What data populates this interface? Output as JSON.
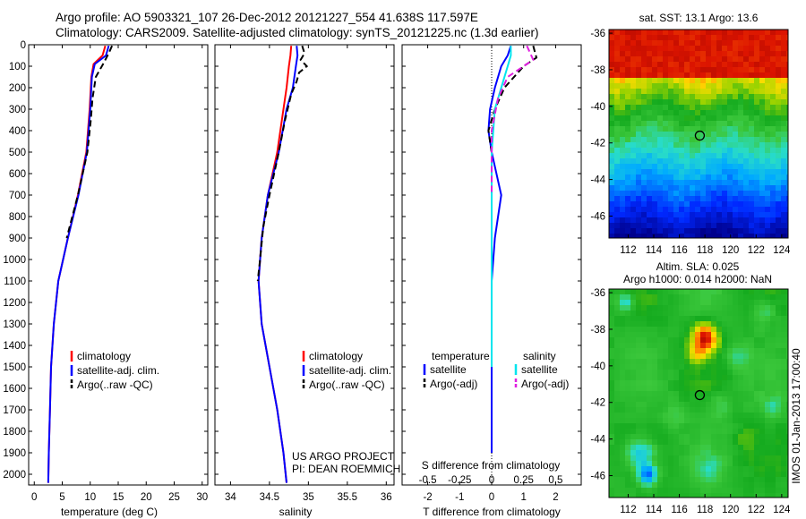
{
  "header": {
    "line1": "Argo profile: AO 5903321_107 26-Dec-2012 20121227_554 41.638S 117.597E",
    "line2": "Climatology: CARS2009. Satellite-adjusted climatology: synTS_20121225.nc (1.3d earlier)"
  },
  "credit": "US ARGO PROJECT\nPI: DEAN ROEMMICH",
  "timestamp": "IMOS 01-Jan-2013 17:00:40",
  "colors": {
    "climatology": "#ff0000",
    "satellite": "#0000ff",
    "argo": "#000000",
    "sal_satellite": "#00e5ee",
    "sal_argo": "#e020e0"
  },
  "chart_data": [
    {
      "type": "line",
      "xlabel": "temperature (deg C)",
      "ylabel": "",
      "xlim": [
        -1,
        31
      ],
      "ylim": [
        2050,
        0
      ],
      "xticks": [
        "0",
        "5",
        "10",
        "15",
        "20",
        "25",
        "30"
      ],
      "yticks": [
        "0",
        "100",
        "200",
        "300",
        "400",
        "500",
        "600",
        "700",
        "800",
        "900",
        "1000",
        "1100",
        "1200",
        "1300",
        "1400",
        "1500",
        "1600",
        "1700",
        "1800",
        "1900",
        "2000"
      ],
      "legend": [
        "climatology",
        "satellite-adj. clim.",
        "Argo(..raw -QC)"
      ],
      "series": [
        {
          "name": "climatology",
          "style": "solid",
          "color": "#ff0000",
          "x": [
            12.7,
            12.2,
            10.6,
            10.2,
            9.9,
            9.3,
            7.8,
            6.0,
            4.3,
            3.5,
            3.0,
            2.8,
            2.6,
            2.5
          ],
          "y": [
            5,
            50,
            90,
            150,
            300,
            500,
            700,
            900,
            1100,
            1300,
            1500,
            1700,
            1900,
            2040
          ]
        },
        {
          "name": "satellite-adj. clim.",
          "style": "solid",
          "color": "#0000ff",
          "x": [
            13.3,
            12.8,
            10.8,
            10.3,
            10.0,
            9.4,
            7.9,
            6.0,
            4.3,
            3.5,
            3.0,
            2.8,
            2.6,
            2.5
          ],
          "y": [
            5,
            50,
            90,
            150,
            300,
            500,
            700,
            900,
            1100,
            1300,
            1500,
            1700,
            1900,
            2040
          ]
        },
        {
          "name": "Argo(..raw -QC)",
          "style": "dashed",
          "color": "#000000",
          "x": [
            13.9,
            13.3,
            12.3,
            11.0,
            10.4,
            10.1,
            9.5,
            7.8,
            5.8
          ],
          "y": [
            5,
            40,
            90,
            150,
            250,
            350,
            500,
            700,
            900
          ]
        }
      ]
    },
    {
      "type": "line",
      "xlabel": "salinity",
      "xlim": [
        33.8,
        36.1
      ],
      "ylim": [
        2050,
        0
      ],
      "xticks": [
        "34",
        "34.5",
        "35",
        "35.5",
        "36"
      ],
      "legend": [
        "climatology",
        "satellite-adj. clim.",
        "Argo(..raw -QC)"
      ],
      "series": [
        {
          "name": "climatology",
          "style": "solid",
          "color": "#ff0000",
          "x": [
            34.78,
            34.77,
            34.75,
            34.72,
            34.68,
            34.6,
            34.48,
            34.4,
            34.36,
            34.4,
            34.5,
            34.6,
            34.68,
            34.72
          ],
          "y": [
            5,
            50,
            100,
            200,
            300,
            500,
            700,
            900,
            1100,
            1300,
            1500,
            1700,
            1900,
            2040
          ]
        },
        {
          "name": "satellite-adj. clim.",
          "style": "solid",
          "color": "#0000ff",
          "x": [
            34.85,
            34.86,
            34.84,
            34.8,
            34.72,
            34.62,
            34.48,
            34.4,
            34.36,
            34.4,
            34.5,
            34.6,
            34.68,
            34.72
          ],
          "y": [
            5,
            50,
            100,
            200,
            300,
            500,
            700,
            900,
            1100,
            1300,
            1500,
            1700,
            1900,
            2040
          ]
        },
        {
          "name": "Argo(..raw -QC)",
          "style": "dashed",
          "color": "#000000",
          "x": [
            34.92,
            34.95,
            34.9,
            34.98,
            34.88,
            34.85,
            34.78,
            34.7,
            34.62,
            34.5,
            34.42,
            34.38,
            34.35
          ],
          "y": [
            5,
            40,
            70,
            100,
            130,
            170,
            230,
            350,
            500,
            700,
            850,
            1000,
            1100
          ]
        }
      ]
    },
    {
      "type": "line",
      "xlabel": "T difference from climatology",
      "x2label": "S difference from climatology",
      "xlim": [
        -2.8,
        2.8
      ],
      "ylim": [
        2050,
        0
      ],
      "xticks": [
        "-2",
        "-1",
        "0",
        "1",
        "2"
      ],
      "x2ticks": [
        "-0.5",
        "-0.25",
        "0",
        "0.25",
        "0.5"
      ],
      "legend": [
        "temperature",
        "satellite",
        "Argo(-adj)",
        "salinity",
        "satellite",
        "Argo(-adj)"
      ],
      "series": [
        {
          "name": "satellite",
          "style": "solid",
          "color": "#0000ff",
          "x": [
            0.6,
            0.5,
            0.3,
            0.1,
            -0.05,
            -0.1,
            0.0,
            0.3,
            0.1,
            0.0,
            0.0,
            0.0
          ],
          "y": [
            5,
            50,
            100,
            200,
            300,
            400,
            500,
            700,
            900,
            1100,
            1500,
            1900
          ]
        },
        {
          "name": "Argo(-adj)",
          "style": "dashed",
          "color": "#000000",
          "x": [
            1.3,
            1.4,
            1.0,
            0.4,
            0.1,
            -0.1,
            0.0,
            0.0,
            0.0,
            0.0
          ],
          "y": [
            5,
            60,
            100,
            200,
            300,
            400,
            500,
            700,
            900,
            1100
          ]
        },
        {
          "name": "satellite",
          "style": "solid",
          "color": "#00e5ee",
          "x": [
            0.6,
            0.6,
            0.5,
            0.3,
            0.1,
            0.0,
            0.0,
            0.0,
            0.0
          ],
          "y": [
            5,
            50,
            100,
            200,
            300,
            500,
            700,
            1100,
            1500
          ]
        },
        {
          "name": "Argo(-adj)",
          "style": "dashed",
          "color": "#e020e0",
          "x": [
            1.1,
            1.3,
            1.0,
            0.5,
            0.2,
            0.0,
            0.0
          ],
          "y": [
            5,
            70,
            100,
            150,
            250,
            400,
            700
          ]
        }
      ]
    },
    {
      "type": "heatmap",
      "title": "sat. SST: 13.1 Argo: 13.6",
      "xlim": [
        110.5,
        124.5
      ],
      "ylim": [
        -47.2,
        -35.8
      ],
      "xticks": [
        "112",
        "114",
        "116",
        "118",
        "120",
        "122",
        "124"
      ],
      "yticks": [
        "-36",
        "-38",
        "-40",
        "-42",
        "-44",
        "-46"
      ],
      "marker": {
        "lon": 117.6,
        "lat": -41.6
      }
    },
    {
      "type": "heatmap",
      "title": "Altim. SLA: 0.025",
      "subtitle": "Argo h1000: 0.014 h2000: NaN",
      "xlim": [
        110.5,
        124.5
      ],
      "ylim": [
        -47.2,
        -35.8
      ],
      "xticks": [
        "112",
        "114",
        "116",
        "118",
        "120",
        "122",
        "124"
      ],
      "yticks": [
        "-36",
        "-38",
        "-40",
        "-42",
        "-44",
        "-46"
      ],
      "marker": {
        "lon": 117.6,
        "lat": -41.6
      }
    }
  ]
}
